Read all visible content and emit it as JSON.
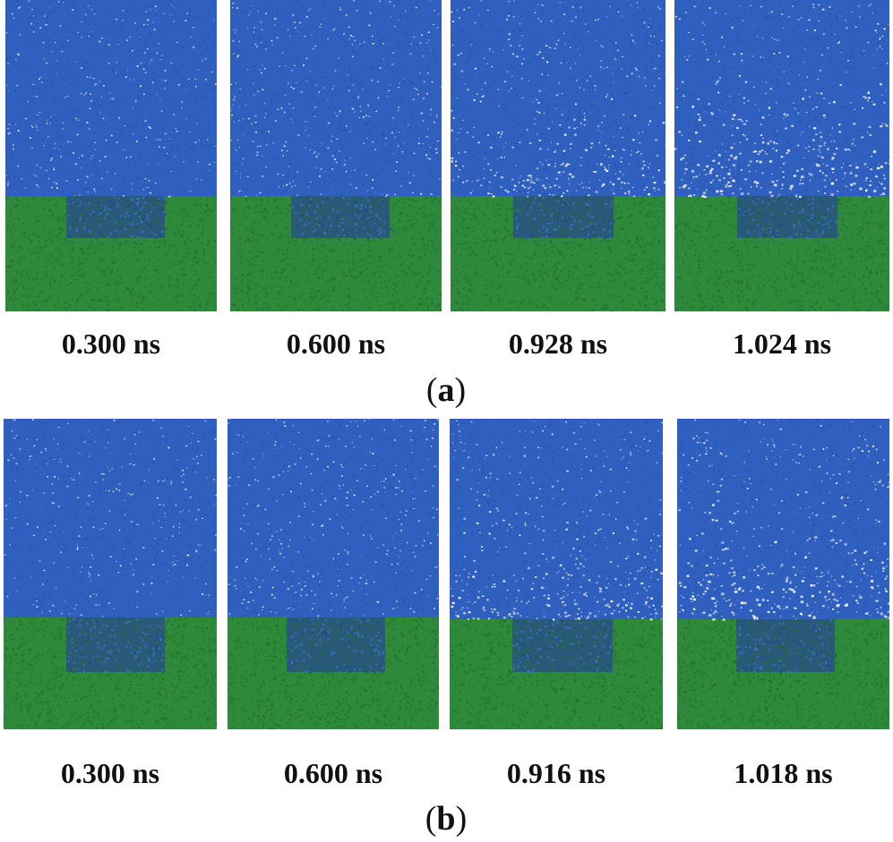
{
  "figure": {
    "colors": {
      "liquid": "#2f5fbf",
      "liquid_dark": "#27519f",
      "solid": "#2e8a3a",
      "solid_dark": "#226b2c",
      "cavity": "#2a5a7a"
    },
    "row_a": {
      "caption_letter": "a",
      "snapshots": [
        {
          "time_label": "0.300 ns",
          "depletion": 0.0
        },
        {
          "time_label": "0.600 ns",
          "depletion": 0.05
        },
        {
          "time_label": "0.928 ns",
          "depletion": 0.45
        },
        {
          "time_label": "1.024 ns",
          "depletion": 0.8
        }
      ]
    },
    "row_b": {
      "caption_letter": "b",
      "snapshots": [
        {
          "time_label": "0.300 ns",
          "depletion": 0.0
        },
        {
          "time_label": "0.600 ns",
          "depletion": 0.05
        },
        {
          "time_label": "0.916 ns",
          "depletion": 0.5
        },
        {
          "time_label": "1.018 ns",
          "depletion": 0.85
        }
      ]
    }
  }
}
